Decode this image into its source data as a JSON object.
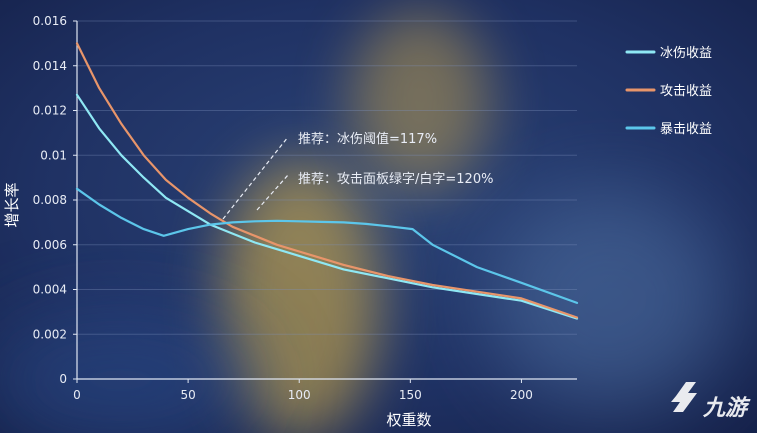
{
  "chart_data": {
    "type": "line",
    "xlabel": "权重数",
    "ylabel": "增长率",
    "xlim": [
      0,
      225
    ],
    "ylim": [
      0,
      0.016
    ],
    "xticks": [
      "0",
      "50",
      "100",
      "150",
      "200"
    ],
    "xtick_values": [
      0,
      50,
      100,
      150,
      200
    ],
    "yticks": [
      "0",
      "0.002",
      "0.004",
      "0.006",
      "0.008",
      "0.01",
      "0.012",
      "0.014",
      "0.016"
    ],
    "ytick_values": [
      0,
      0.002,
      0.004,
      0.006,
      0.008,
      0.01,
      0.012,
      0.014,
      0.016
    ],
    "grid": true,
    "legend_position": "top-right",
    "series": [
      {
        "name": "冰伤收益",
        "color": "#8fe8f4",
        "x": [
          0,
          10,
          20,
          30,
          40,
          50,
          60,
          70,
          80,
          90,
          100,
          120,
          140,
          160,
          180,
          200,
          225
        ],
        "values": [
          0.0127,
          0.0112,
          0.01,
          0.009,
          0.0081,
          0.0075,
          0.0069,
          0.0065,
          0.0061,
          0.0058,
          0.0055,
          0.0049,
          0.0045,
          0.0041,
          0.0038,
          0.0035,
          0.0027
        ]
      },
      {
        "name": "攻击收益",
        "color": "#e8956a",
        "x": [
          0,
          10,
          20,
          30,
          40,
          50,
          60,
          70,
          80,
          90,
          100,
          120,
          140,
          160,
          180,
          200,
          225
        ],
        "values": [
          0.015,
          0.013,
          0.0114,
          0.01,
          0.0089,
          0.0081,
          0.0074,
          0.0068,
          0.0064,
          0.006,
          0.0057,
          0.0051,
          0.0046,
          0.0042,
          0.0039,
          0.0036,
          0.00275
        ]
      },
      {
        "name": "暴击收益",
        "color": "#5cc6ea",
        "x": [
          0,
          10,
          20,
          30,
          39,
          50,
          60,
          70,
          80,
          90,
          100,
          110,
          120,
          130,
          140,
          151,
          160,
          180,
          200,
          225
        ],
        "values": [
          0.0085,
          0.0078,
          0.0072,
          0.0067,
          0.0064,
          0.0067,
          0.0069,
          0.007,
          0.00705,
          0.00707,
          0.00705,
          0.00702,
          0.007,
          0.00693,
          0.00683,
          0.0067,
          0.006,
          0.005,
          0.0043,
          0.0034
        ]
      }
    ],
    "annotations": [
      {
        "text": "推荐：冰伤阈值=117%"
      },
      {
        "text": "推荐：攻击面板绿字/白字=120%"
      }
    ]
  },
  "watermark": {
    "text": "九游"
  }
}
